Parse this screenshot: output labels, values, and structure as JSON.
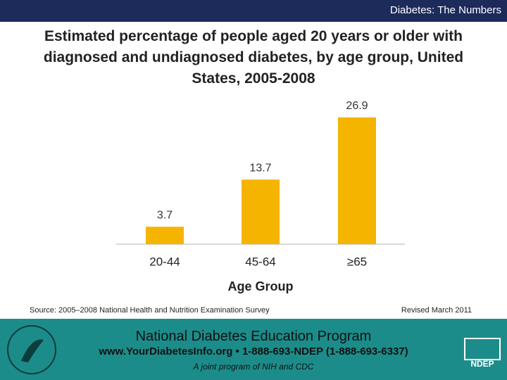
{
  "header": {
    "title": "Diabetes: The Numbers"
  },
  "chart_data": {
    "type": "bar",
    "title": "Estimated percentage of people aged 20 years or older with diagnosed and undiagnosed diabetes, by age group, United States, 2005-2008",
    "categories": [
      "20-44",
      "45-64",
      "≥65"
    ],
    "values": [
      3.7,
      13.7,
      26.9
    ],
    "color": "#f5b400",
    "x_label": "Age Group"
  },
  "source": "Source: 2005–2008 National Health and Nutrition Examination Survey",
  "revised": "Revised March 2011",
  "footer": {
    "program": "National Diabetes Education Program",
    "contact": "www.YourDiabetesInfo.org • 1-888-693-NDEP (1-888-693-6337)",
    "tagline": "A joint program of NIH and CDC"
  }
}
